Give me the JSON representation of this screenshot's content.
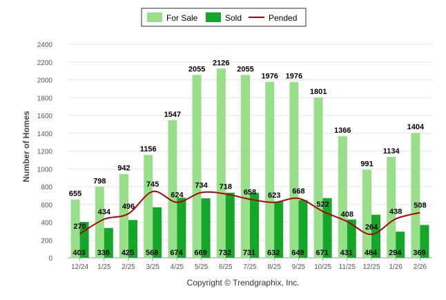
{
  "chart_data": {
    "type": "bar",
    "ylabel": "Number of Homes",
    "ylim": [
      0,
      2400
    ],
    "yticks": [
      "0",
      "200",
      "400",
      "600",
      "800",
      "1000",
      "1200",
      "1400",
      "1600",
      "1800",
      "2000",
      "2200",
      "2400"
    ],
    "grid": true,
    "legend_position": "top-center",
    "categories": [
      "12/24",
      "1/25",
      "2/25",
      "3/25",
      "4/25",
      "5/25",
      "6/25",
      "7/25",
      "8/25",
      "9/25",
      "10/25",
      "11/25",
      "12/25",
      "1/26",
      "2/26"
    ],
    "series": [
      {
        "name": "For Sale",
        "type": "bar",
        "color": "#98df8a",
        "values": [
          655,
          798,
          942,
          1156,
          1547,
          2055,
          2126,
          2055,
          1976,
          1976,
          1801,
          1366,
          991,
          1134,
          1404
        ]
      },
      {
        "name": "Sold",
        "type": "bar",
        "color": "#15a72a",
        "values": [
          403,
          336,
          425,
          568,
          674,
          669,
          732,
          731,
          632,
          649,
          671,
          431,
          484,
          294,
          369
        ]
      },
      {
        "name": "Pended",
        "type": "line",
        "color": "#b00000",
        "values": [
          270,
          434,
          496,
          745,
          624,
          734,
          718,
          658,
          623,
          668,
          522,
          408,
          264,
          438,
          508
        ]
      }
    ]
  },
  "footer": {
    "copyright": "Copyright © Trendgraphix, Inc."
  }
}
